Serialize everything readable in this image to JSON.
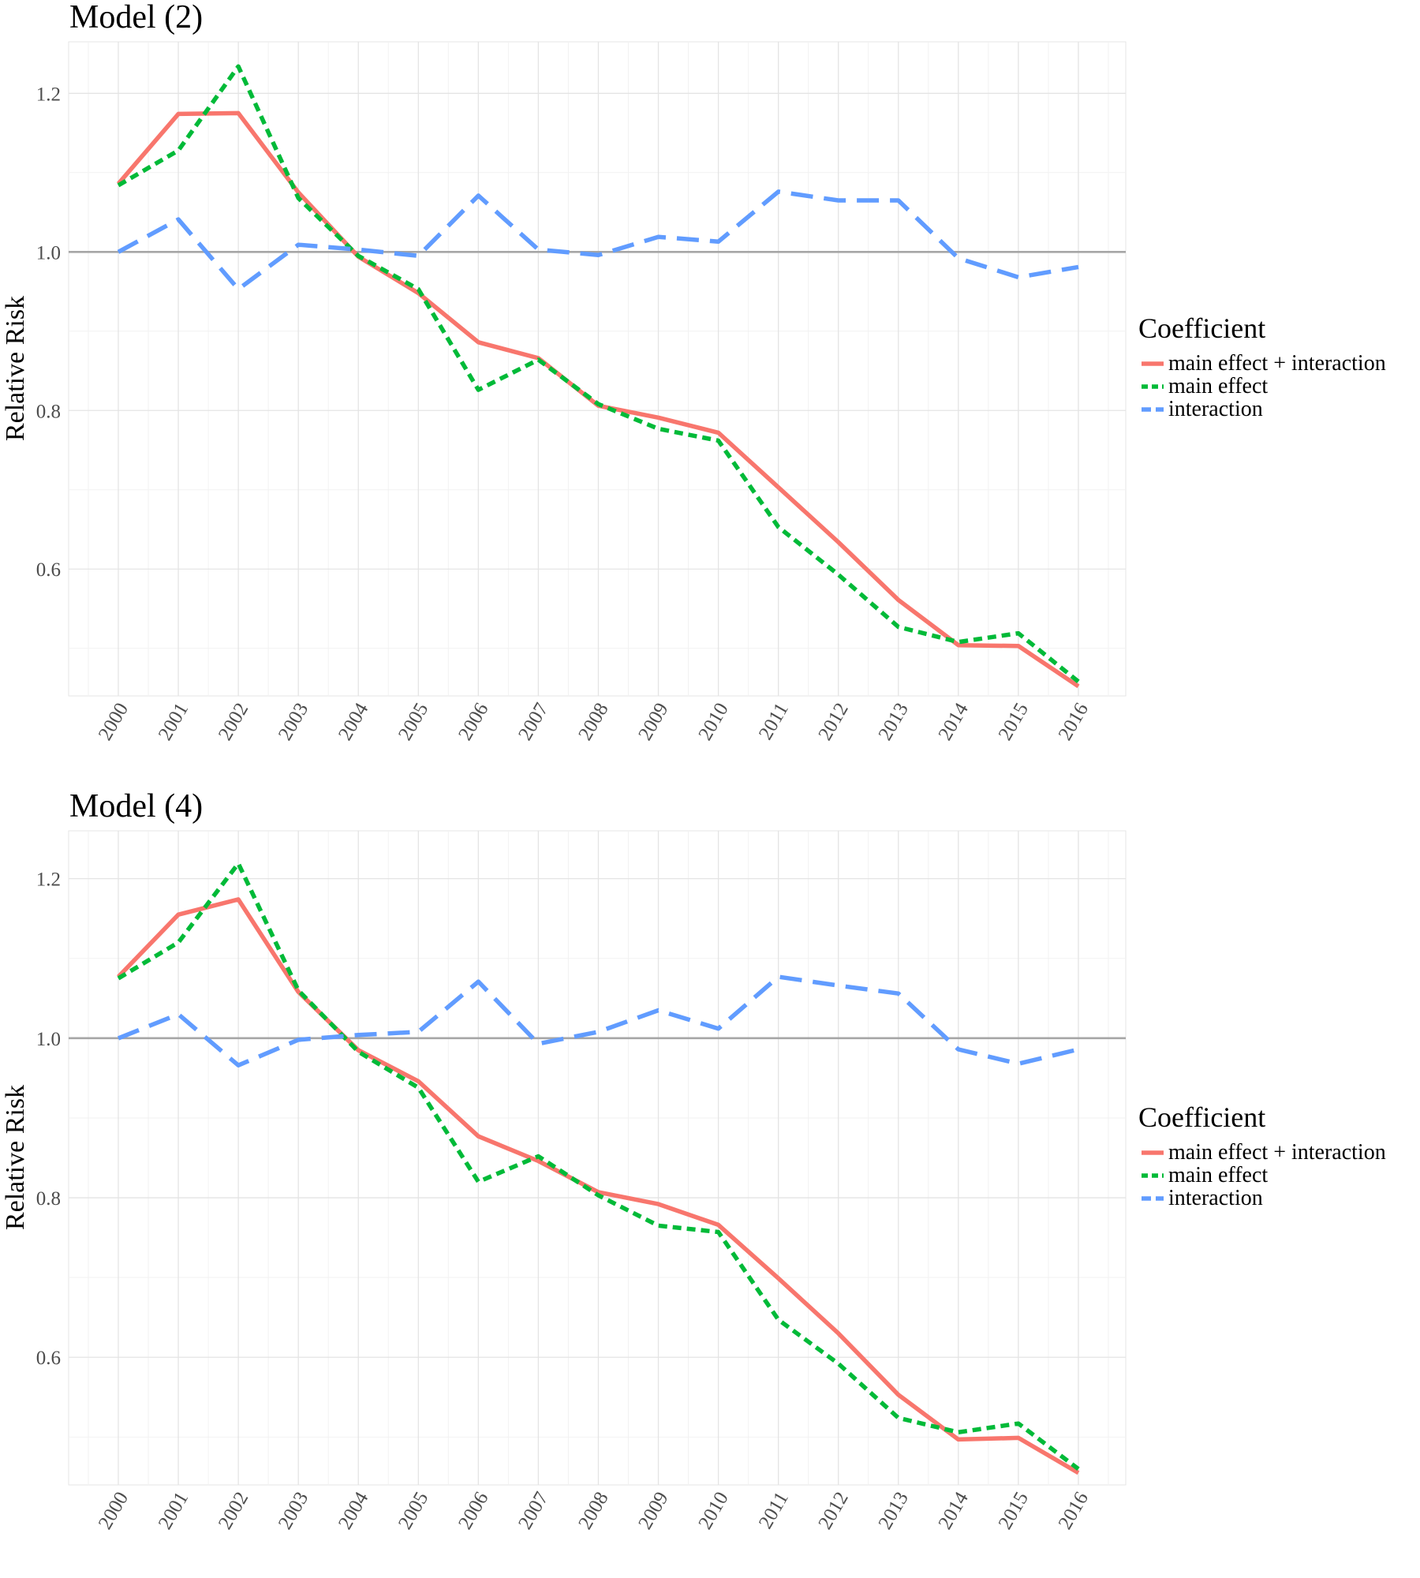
{
  "chart_data": [
    {
      "type": "line",
      "title": "Model (2)",
      "xlabel": "",
      "ylabel": "Relative Risk",
      "x": [
        "2000",
        "2001",
        "2002",
        "2003",
        "2004",
        "2005",
        "2006",
        "2007",
        "2008",
        "2009",
        "2010",
        "2011",
        "2012",
        "2013",
        "2014",
        "2015",
        "2016"
      ],
      "ylim": [
        0.44,
        1.265
      ],
      "yticks": [
        "0.6",
        "0.8",
        "1.0",
        "1.2"
      ],
      "reference_line": 1.0,
      "grid": true,
      "legend": {
        "title": "Coefficient",
        "placement": "right"
      },
      "series": [
        {
          "name": "main effect + interaction",
          "color": "#F8766D",
          "linestyle": "solid",
          "values": [
            1.086,
            1.174,
            1.175,
            1.075,
            0.994,
            0.948,
            0.886,
            0.866,
            0.806,
            0.791,
            0.772,
            0.703,
            0.634,
            0.561,
            0.504,
            0.503,
            0.452
          ]
        },
        {
          "name": "main effect",
          "color": "#00BA38",
          "linestyle": "dotted",
          "values": [
            1.084,
            1.128,
            1.234,
            1.068,
            0.995,
            0.953,
            0.826,
            0.864,
            0.808,
            0.777,
            0.762,
            0.653,
            0.593,
            0.527,
            0.508,
            0.519,
            0.458
          ]
        },
        {
          "name": "interaction",
          "color": "#619CFF",
          "linestyle": "dashed",
          "values": [
            1.0,
            1.041,
            0.953,
            1.009,
            1.003,
            0.995,
            1.071,
            1.003,
            0.996,
            1.019,
            1.013,
            1.076,
            1.065,
            1.065,
            0.992,
            0.968,
            0.981
          ]
        }
      ]
    },
    {
      "type": "line",
      "title": "Model (4)",
      "xlabel": "",
      "ylabel": "Relative Risk",
      "x": [
        "2000",
        "2001",
        "2002",
        "2003",
        "2004",
        "2005",
        "2006",
        "2007",
        "2008",
        "2009",
        "2010",
        "2011",
        "2012",
        "2013",
        "2014",
        "2015",
        "2016"
      ],
      "ylim": [
        0.44,
        1.26
      ],
      "yticks": [
        "0.6",
        "0.8",
        "1.0",
        "1.2"
      ],
      "reference_line": 1.0,
      "grid": true,
      "legend": {
        "title": "Coefficient",
        "placement": "right"
      },
      "series": [
        {
          "name": "main effect + interaction",
          "color": "#F8766D",
          "linestyle": "solid",
          "values": [
            1.077,
            1.155,
            1.174,
            1.058,
            0.985,
            0.946,
            0.877,
            0.846,
            0.807,
            0.792,
            0.766,
            0.699,
            0.63,
            0.553,
            0.497,
            0.499,
            0.455
          ]
        },
        {
          "name": "main effect",
          "color": "#00BA38",
          "linestyle": "dotted",
          "values": [
            1.075,
            1.12,
            1.219,
            1.06,
            0.983,
            0.938,
            0.82,
            0.852,
            0.803,
            0.765,
            0.757,
            0.647,
            0.592,
            0.524,
            0.506,
            0.517,
            0.46
          ]
        },
        {
          "name": "interaction",
          "color": "#619CFF",
          "linestyle": "dashed",
          "values": [
            1.0,
            1.03,
            0.966,
            0.998,
            1.004,
            1.008,
            1.071,
            0.993,
            1.008,
            1.035,
            1.012,
            1.077,
            1.066,
            1.056,
            0.986,
            0.968,
            0.986
          ]
        }
      ]
    }
  ]
}
